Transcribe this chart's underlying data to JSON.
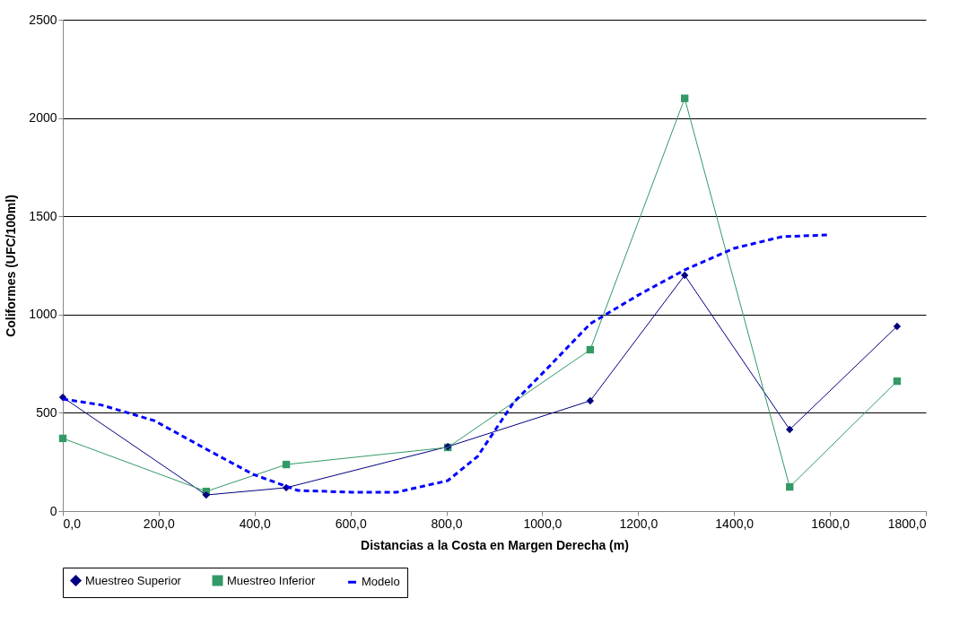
{
  "chart_data": {
    "type": "line",
    "xlabel": "Distancias a la Costa en Margen Derecha (m)",
    "ylabel": "Coliformes (UFC/100ml)",
    "xlim": [
      0,
      1800
    ],
    "xticks": [
      {
        "value": 0,
        "label": "0,0"
      },
      {
        "value": 200,
        "label": "200,0"
      },
      {
        "value": 400,
        "label": "400,0"
      },
      {
        "value": 600,
        "label": "600,0"
      },
      {
        "value": 800,
        "label": "800,0"
      },
      {
        "value": 1000,
        "label": "1000,0"
      },
      {
        "value": 1200,
        "label": "1200,0"
      },
      {
        "value": 1400,
        "label": "1400,0"
      },
      {
        "value": 1600,
        "label": "1600,0"
      },
      {
        "value": 1800,
        "label": "1800,0"
      }
    ],
    "ylim": [
      0,
      2500
    ],
    "yticks": [
      0,
      500,
      1000,
      1500,
      2000,
      2500
    ],
    "grid": "y",
    "legend": "bottom",
    "series": [
      {
        "name": "Muestreo Superior",
        "color": "#000080",
        "marker": "diamond",
        "line_style": "solid",
        "x": [
          0,
          299,
          466,
          803,
          1100,
          1297,
          1516,
          1740
        ],
        "values": [
          579,
          82,
          119,
          328,
          561,
          1200,
          415,
          940
        ]
      },
      {
        "name": "Muestreo Inferior",
        "color": "#339966",
        "marker": "square",
        "line_style": "solid",
        "x": [
          0,
          299,
          466,
          803,
          1100,
          1297,
          1516,
          1740
        ],
        "values": [
          370,
          100,
          237,
          324,
          821,
          2100,
          123,
          661
        ]
      },
      {
        "name": "Modelo",
        "color": "#0000ff",
        "marker": "none",
        "line_style": "dashed",
        "x": [
          0,
          80,
          191,
          303,
          397,
          490,
          603,
          696,
          803,
          865,
          940,
          1014,
          1100,
          1201,
          1297,
          1400,
          1500,
          1594
        ],
        "values": [
          570,
          540,
          460,
          310,
          187,
          105,
          96,
          96,
          155,
          278,
          552,
          735,
          953,
          1100,
          1227,
          1337,
          1396,
          1405
        ]
      }
    ]
  }
}
